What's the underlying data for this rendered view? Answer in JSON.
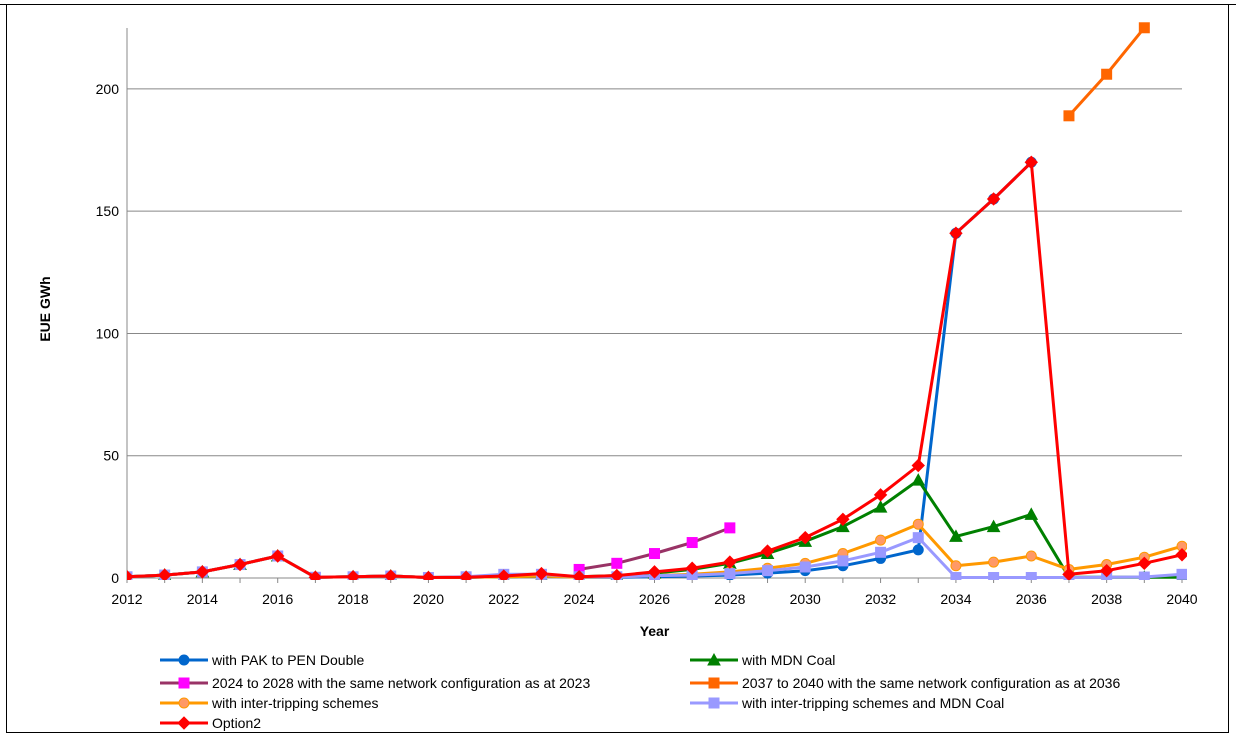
{
  "chart_data": {
    "type": "line",
    "xlabel": "Year",
    "ylabel": "EUE GWh",
    "xlim": [
      2012,
      2040
    ],
    "ylim": [
      0,
      220
    ],
    "x_ticks": [
      "2012",
      "2014",
      "2016",
      "2018",
      "2020",
      "2022",
      "2024",
      "2026",
      "2028",
      "2030",
      "2032",
      "2034",
      "2036",
      "2038",
      "2040"
    ],
    "y_ticks": [
      "0",
      "50",
      "100",
      "150",
      "200"
    ],
    "grid": "horizontal",
    "legend": "bottom",
    "series": [
      {
        "name": "with PAK to PEN Double",
        "color": "#0066cc",
        "marker": "circle",
        "x": [
          2012,
          2013,
          2014,
          2015,
          2016,
          2017,
          2018,
          2019,
          2020,
          2021,
          2022,
          2023,
          2024,
          2025,
          2026,
          2027,
          2028,
          2029,
          2030,
          2031,
          2032,
          2033,
          2034,
          2035,
          2036
        ],
        "y": [
          0.5,
          1.2,
          2.5,
          5.5,
          9,
          0.3,
          0.5,
          0.8,
          0.2,
          0.3,
          0.5,
          0.8,
          0.3,
          0.3,
          0.5,
          0.8,
          1.2,
          2,
          3,
          5,
          8,
          11.5,
          141,
          155,
          170
        ]
      },
      {
        "name": "with MDN Coal",
        "color": "#008000",
        "marker": "triangle",
        "x": [
          2012,
          2013,
          2014,
          2015,
          2016,
          2017,
          2018,
          2019,
          2020,
          2021,
          2022,
          2023,
          2024,
          2025,
          2026,
          2027,
          2028,
          2029,
          2030,
          2031,
          2032,
          2033,
          2034,
          2035,
          2036,
          2037,
          2038,
          2039,
          2040
        ],
        "y": [
          0.5,
          1.2,
          2.5,
          5.5,
          9,
          0.3,
          0.5,
          0.8,
          0.2,
          0.3,
          0.5,
          0.8,
          0.5,
          1,
          2,
          3.5,
          6,
          10,
          15,
          21,
          29,
          40,
          17,
          21,
          26,
          0.3,
          0.3,
          0.3,
          0.3
        ]
      },
      {
        "name": "2024 to 2028 with the same network configuration as at 2023",
        "color": "#993366",
        "markerColor": "#ff00ff",
        "marker": "square",
        "x": [
          2024,
          2025,
          2026,
          2027,
          2028
        ],
        "y": [
          3.5,
          6,
          10,
          14.5,
          20.5
        ]
      },
      {
        "name": "2037 to 2040 with the same network configuration as at 2036",
        "color": "#ff6600",
        "marker": "square",
        "x": [
          2037,
          2038,
          2039
        ],
        "y": [
          189,
          206,
          225
        ]
      },
      {
        "name": "with inter-tripping schemes",
        "color": "#ff9900",
        "markerColor": "#ff9966",
        "marker": "circle",
        "x": [
          2012,
          2013,
          2014,
          2015,
          2016,
          2017,
          2018,
          2019,
          2020,
          2021,
          2022,
          2023,
          2024,
          2025,
          2026,
          2027,
          2028,
          2029,
          2030,
          2031,
          2032,
          2033,
          2034,
          2035,
          2036,
          2037,
          2038,
          2039,
          2040
        ],
        "y": [
          0.5,
          1.2,
          2.5,
          5.5,
          9,
          0.3,
          0.5,
          0.8,
          0.2,
          0.3,
          0.5,
          0.8,
          0.3,
          0.5,
          1,
          1.5,
          2.5,
          4,
          6,
          10,
          15.5,
          22,
          5,
          6.5,
          9,
          3.5,
          5.5,
          8.5,
          13
        ]
      },
      {
        "name": "with inter-tripping schemes and MDN Coal",
        "color": "#9999ff",
        "marker": "square",
        "x": [
          2012,
          2013,
          2014,
          2015,
          2016,
          2017,
          2018,
          2019,
          2020,
          2021,
          2022,
          2023,
          2024,
          2025,
          2026,
          2027,
          2028,
          2029,
          2030,
          2031,
          2032,
          2033,
          2034,
          2035,
          2036,
          2037,
          2038,
          2039,
          2040
        ],
        "y": [
          0.5,
          1.2,
          2.5,
          5.5,
          9,
          0.3,
          0.5,
          0.8,
          0.2,
          0.5,
          1.5,
          1.5,
          0.5,
          0.5,
          1,
          1.2,
          1.8,
          3,
          4.5,
          7,
          10.5,
          16.5,
          0.2,
          0.2,
          0.2,
          0.2,
          0.3,
          0.4,
          1.5
        ]
      },
      {
        "name": "Option2",
        "color": "#ff0000",
        "marker": "diamond",
        "x": [
          2012,
          2013,
          2014,
          2015,
          2016,
          2017,
          2018,
          2019,
          2020,
          2021,
          2022,
          2023,
          2024,
          2025,
          2026,
          2027,
          2028,
          2029,
          2030,
          2031,
          2032,
          2033,
          2034,
          2035,
          2036,
          2037,
          2038,
          2039,
          2040
        ],
        "y": [
          0.5,
          1.2,
          2.5,
          5.5,
          9,
          0.3,
          0.5,
          0.8,
          0.2,
          0.3,
          0.8,
          1.8,
          0.5,
          1,
          2.5,
          4,
          6.5,
          11,
          16.5,
          24,
          34,
          46,
          141,
          155,
          170,
          1.5,
          3,
          6,
          9.5
        ]
      }
    ]
  }
}
